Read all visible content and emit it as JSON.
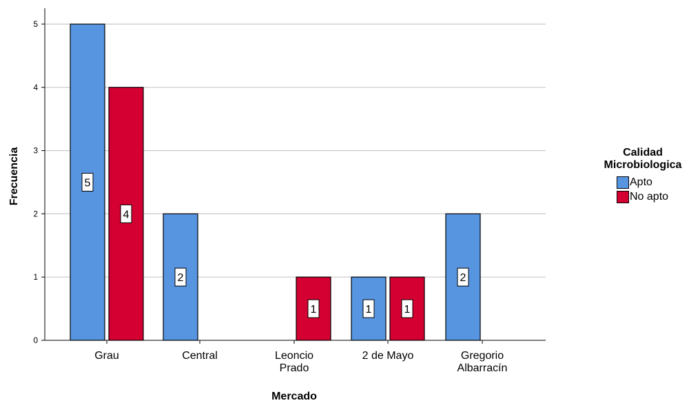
{
  "chart_data": {
    "type": "bar",
    "title": "",
    "xlabel": "Mercado",
    "ylabel": "Frecuencia",
    "categories": [
      [
        "Grau"
      ],
      [
        "Central"
      ],
      [
        "Leoncio",
        "Prado"
      ],
      [
        "2 de Mayo"
      ],
      [
        "Gregorio",
        "Albarracín"
      ]
    ],
    "series": [
      {
        "name": "Apto",
        "color": "#5795E0",
        "values": [
          5,
          2,
          0,
          1,
          2
        ]
      },
      {
        "name": "No apto",
        "color": "#D30031",
        "values": [
          4,
          0,
          1,
          1,
          0
        ]
      }
    ],
    "ylim": [
      0,
      5
    ],
    "yticks": [
      0,
      1,
      2,
      3,
      4,
      5
    ],
    "grid": true,
    "data_labels": true,
    "legend": {
      "title": "Calidad Microbiologica",
      "position": "right"
    }
  },
  "legend": {
    "title_line1": "Calidad",
    "title_line2": "Microbiologica",
    "items": [
      {
        "label": "Apto",
        "color": "#5795E0"
      },
      {
        "label": "No apto",
        "color": "#D30031"
      }
    ]
  }
}
